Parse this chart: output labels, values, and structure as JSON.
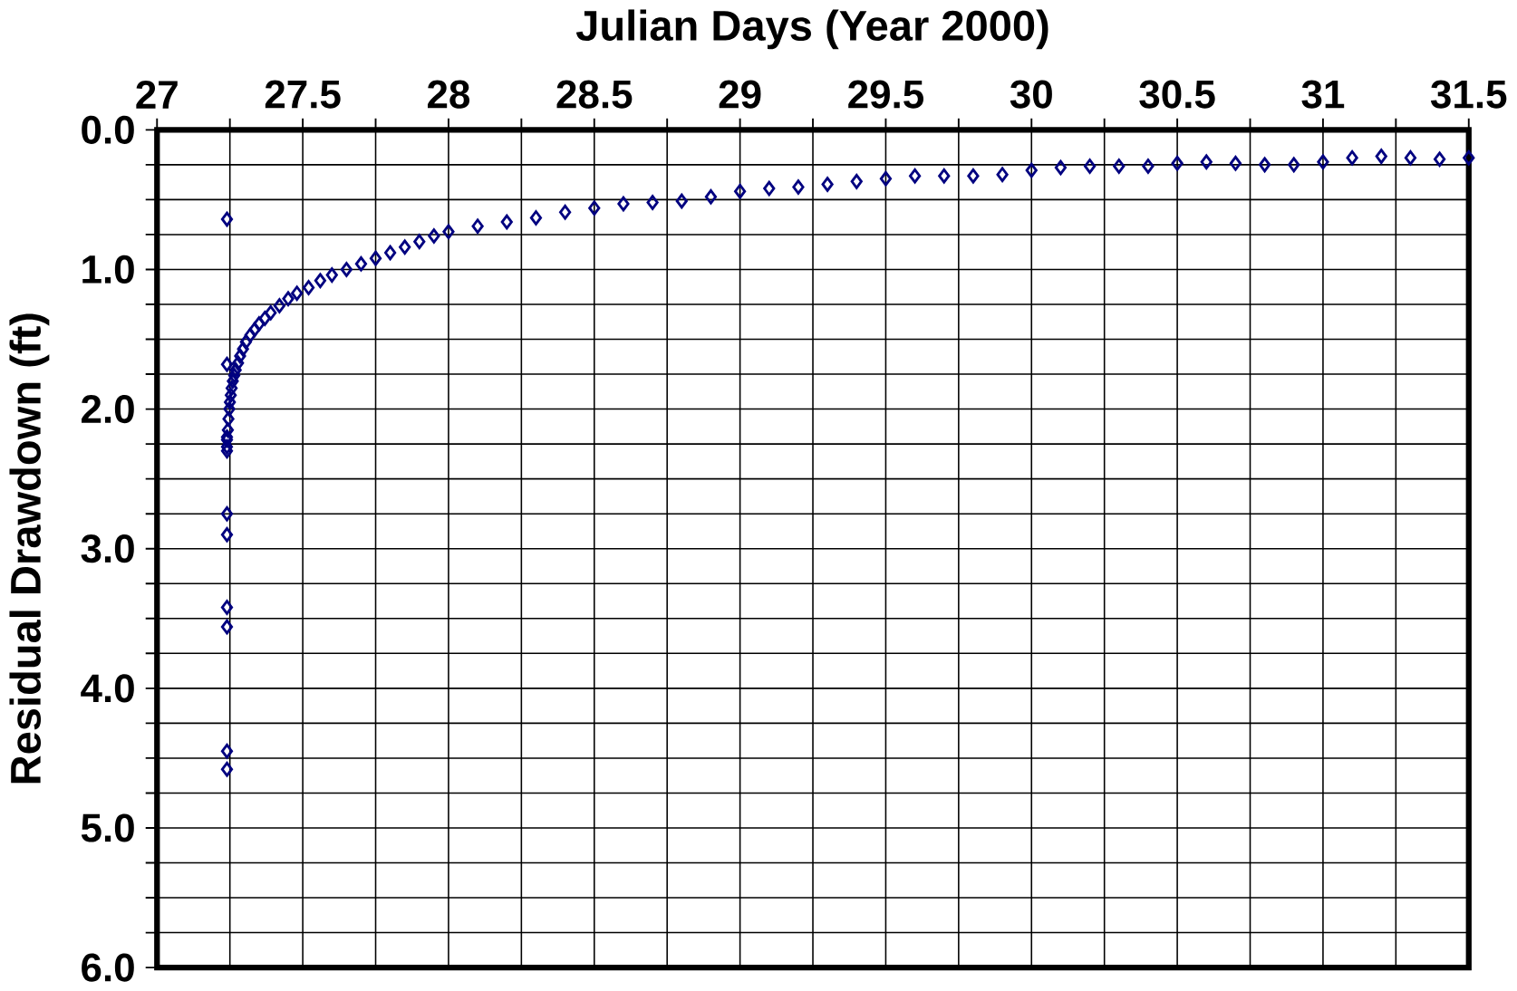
{
  "chart_data": {
    "type": "scatter",
    "xlabel": "Julian Days (Year 2000)",
    "ylabel": "Residual Drawdown (ft)",
    "xlim": [
      27,
      31.5
    ],
    "ylim": [
      6,
      0
    ],
    "xticks": [
      27,
      {
        "value": 27.25,
        "label": null
      },
      27.5,
      {
        "value": 27.75,
        "label": null
      },
      28,
      {
        "value": 28.25,
        "label": null
      },
      28.5,
      {
        "value": 28.75,
        "label": null
      },
      29,
      {
        "value": 29.25,
        "label": null
      },
      29.5,
      {
        "value": 29.75,
        "label": null
      },
      30,
      {
        "value": 30.25,
        "label": null
      },
      30.5,
      {
        "value": 30.75,
        "label": null
      },
      31,
      {
        "value": 31.25,
        "label": null
      },
      31.5
    ],
    "yticks": [
      {
        "value": 0,
        "label": "0.0"
      },
      {
        "value": 0.25,
        "label": null
      },
      {
        "value": 0.5,
        "label": null
      },
      {
        "value": 0.75,
        "label": null
      },
      {
        "value": 1,
        "label": "1.0"
      },
      {
        "value": 1.25,
        "label": null
      },
      {
        "value": 1.5,
        "label": null
      },
      {
        "value": 1.75,
        "label": null
      },
      {
        "value": 2,
        "label": "2.0"
      },
      {
        "value": 2.25,
        "label": null
      },
      {
        "value": 2.5,
        "label": null
      },
      {
        "value": 2.75,
        "label": null
      },
      {
        "value": 3,
        "label": "3.0"
      },
      {
        "value": 3.25,
        "label": null
      },
      {
        "value": 3.5,
        "label": null
      },
      {
        "value": 3.75,
        "label": null
      },
      {
        "value": 4,
        "label": "4.0"
      },
      {
        "value": 4.25,
        "label": null
      },
      {
        "value": 4.5,
        "label": null
      },
      {
        "value": 4.75,
        "label": null
      },
      {
        "value": 5,
        "label": "5.0"
      },
      {
        "value": 5.25,
        "label": null
      },
      {
        "value": 5.5,
        "label": null
      },
      {
        "value": 5.75,
        "label": null
      },
      {
        "value": 6,
        "label": "6.0"
      }
    ],
    "grid": true,
    "marker": "diamond",
    "series": [
      {
        "color": "#000080",
        "x": [
          27.24,
          27.24,
          27.24,
          27.24,
          27.24,
          27.24,
          27.24,
          27.24,
          27.24,
          27.24,
          27.24,
          27.24,
          27.243,
          27.245,
          27.248,
          27.25,
          27.253,
          27.256,
          27.26,
          27.265,
          27.27,
          27.278,
          27.285,
          27.295,
          27.305,
          27.32,
          27.335,
          27.35,
          27.37,
          27.39,
          27.42,
          27.45,
          27.48,
          27.52,
          27.56,
          27.6,
          27.65,
          27.7,
          27.75,
          27.8,
          27.85,
          27.9,
          27.95,
          28.0,
          28.1,
          28.2,
          28.3,
          28.4,
          28.5,
          28.6,
          28.7,
          28.8,
          28.9,
          29.0,
          29.1,
          29.2,
          29.3,
          29.4,
          29.5,
          29.6,
          29.7,
          29.8,
          29.9,
          30.0,
          30.1,
          30.2,
          30.3,
          30.4,
          30.5,
          30.6,
          30.7,
          30.8,
          30.9,
          31.0,
          31.1,
          31.2,
          31.3,
          31.4,
          31.5
        ],
        "values": [
          0.64,
          1.68,
          2.2,
          2.22,
          2.27,
          2.3,
          2.75,
          2.9,
          3.42,
          3.56,
          4.45,
          4.58,
          2.15,
          2.07,
          2.0,
          1.95,
          1.9,
          1.85,
          1.8,
          1.76,
          1.72,
          1.67,
          1.62,
          1.57,
          1.52,
          1.47,
          1.43,
          1.39,
          1.35,
          1.31,
          1.26,
          1.21,
          1.17,
          1.13,
          1.08,
          1.04,
          1.0,
          0.96,
          0.92,
          0.88,
          0.84,
          0.8,
          0.76,
          0.73,
          0.69,
          0.66,
          0.63,
          0.59,
          0.56,
          0.53,
          0.52,
          0.51,
          0.48,
          0.44,
          0.42,
          0.41,
          0.39,
          0.37,
          0.35,
          0.33,
          0.33,
          0.33,
          0.32,
          0.29,
          0.27,
          0.26,
          0.26,
          0.26,
          0.24,
          0.23,
          0.24,
          0.25,
          0.25,
          0.23,
          0.2,
          0.19,
          0.2,
          0.21,
          0.2
        ]
      }
    ]
  }
}
